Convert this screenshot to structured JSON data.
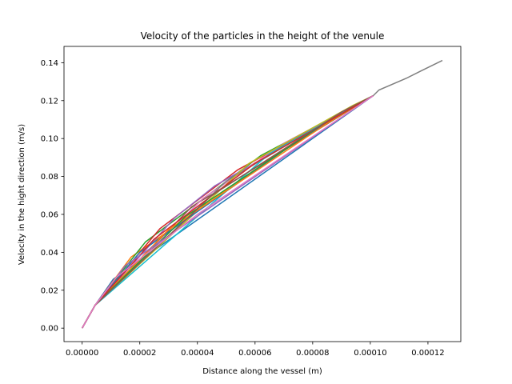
{
  "chart_data": {
    "type": "line",
    "title": "Velocity of the particles in the height of the venule",
    "xlabel": "Distance along the vessel (m)",
    "ylabel": "Velocity in the hight direction (m/s)",
    "xlim": [
      -6.3e-06,
      0.0001314
    ],
    "ylim": [
      -0.0071,
      0.1486
    ],
    "xticks": [
      0,
      2e-05,
      4e-05,
      6e-05,
      8e-05,
      0.0001,
      0.00012
    ],
    "xtick_labels": [
      "0.00000",
      "0.00002",
      "0.00004",
      "0.00006",
      "0.00008",
      "0.00010",
      "0.00012"
    ],
    "yticks": [
      0,
      0.02,
      0.04,
      0.06,
      0.08,
      0.1,
      0.12,
      0.14
    ],
    "ytick_labels": [
      "0.00",
      "0.02",
      "0.04",
      "0.06",
      "0.08",
      "0.10",
      "0.12",
      "0.14"
    ],
    "grid": false,
    "series_colors": [
      "#1f77b4",
      "#ff7f0e",
      "#2ca02c",
      "#d62728",
      "#9467bd",
      "#8c564b",
      "#e377c2",
      "#7f7f7f",
      "#bcbd22",
      "#17becf"
    ],
    "series": [
      {
        "x": [
          0,
          4.5e-06,
          1.08e-05,
          0.000101
        ],
        "y": [
          0,
          0.0121,
          0.0258,
          0.1226
        ]
      },
      {
        "x": [
          0,
          4.5e-06,
          1.7e-05,
          8e-05,
          0.000101
        ],
        "y": [
          0,
          0.0121,
          0.0375,
          0.1046,
          0.1226
        ]
      },
      {
        "x": [
          0,
          4.5e-06,
          2.2e-05,
          6.2e-05,
          0.000101
        ],
        "y": [
          0,
          0.0121,
          0.0455,
          0.091,
          0.1226
        ]
      },
      {
        "x": [
          0,
          4.5e-06,
          2.7e-05,
          5.4e-05,
          0.000101
        ],
        "y": [
          0,
          0.0121,
          0.0525,
          0.0835,
          0.1226
        ]
      },
      {
        "x": [
          0,
          4.5e-06,
          3.2e-05,
          4.6e-05,
          0.000101
        ],
        "y": [
          0,
          0.0121,
          0.058,
          0.075,
          0.1226
        ]
      },
      {
        "x": [
          0,
          4.5e-06,
          3.8e-05,
          0.000101
        ],
        "y": [
          0,
          0.0121,
          0.064,
          0.1226
        ]
      },
      {
        "x": [
          0,
          4.5e-06,
          4.2e-05,
          7e-05,
          0.000101
        ],
        "y": [
          0,
          0.0121,
          0.0685,
          0.0975,
          0.1226
        ]
      },
      {
        "x": [
          0,
          4.5e-06,
          5e-05,
          8.8e-05,
          0.000101
        ],
        "y": [
          0,
          0.0121,
          0.0775,
          0.112,
          0.1226
        ]
      },
      {
        "x": [
          0,
          4.5e-06,
          5.8e-05,
          9.4e-05,
          0.000101
        ],
        "y": [
          0,
          0.0121,
          0.087,
          0.1175,
          0.1226
        ]
      },
      {
        "x": [
          0,
          4.5e-06,
          6.5e-05,
          9.9e-05,
          0.000101
        ],
        "y": [
          0,
          0.0121,
          0.092,
          0.121,
          0.1226
        ]
      },
      {
        "x": [
          0,
          4.5e-06,
          2e-05,
          7.5e-05,
          0.000101
        ],
        "y": [
          0,
          0.0121,
          0.04,
          0.099,
          0.1226
        ]
      },
      {
        "x": [
          0,
          4.5e-06,
          3e-05,
          8.5e-05,
          0.000101
        ],
        "y": [
          0,
          0.0121,
          0.052,
          0.108,
          0.1226
        ]
      },
      {
        "x": [
          0,
          4.5e-06,
          3.6e-05,
          8.2e-05,
          0.000101
        ],
        "y": [
          0,
          0.0121,
          0.059,
          0.106,
          0.1226
        ]
      },
      {
        "x": [
          0,
          4.5e-06,
          2.5e-05,
          6e-05,
          0.000101
        ],
        "y": [
          0,
          0.0121,
          0.047,
          0.087,
          0.1226
        ]
      },
      {
        "x": [
          0,
          4.5e-06,
          1.5e-05,
          0.000101
        ],
        "y": [
          0,
          0.0121,
          0.033,
          0.1226
        ]
      },
      {
        "x": [
          0,
          4.5e-06,
          4.5e-05,
          9e-05,
          0.000101
        ],
        "y": [
          0,
          0.0121,
          0.07,
          0.114,
          0.1226
        ]
      },
      {
        "x": [
          0,
          4.5e-06,
          1.2e-05,
          4e-05,
          0.000101
        ],
        "y": [
          0,
          0.0121,
          0.027,
          0.06,
          0.1226
        ]
      },
      {
        "x": [
          0.000101,
          0.000103,
          0.0001125,
          0.0001175,
          0.000125
        ],
        "y": [
          0.1226,
          0.1256,
          0.1318,
          0.1356,
          0.1412
        ]
      }
    ]
  }
}
